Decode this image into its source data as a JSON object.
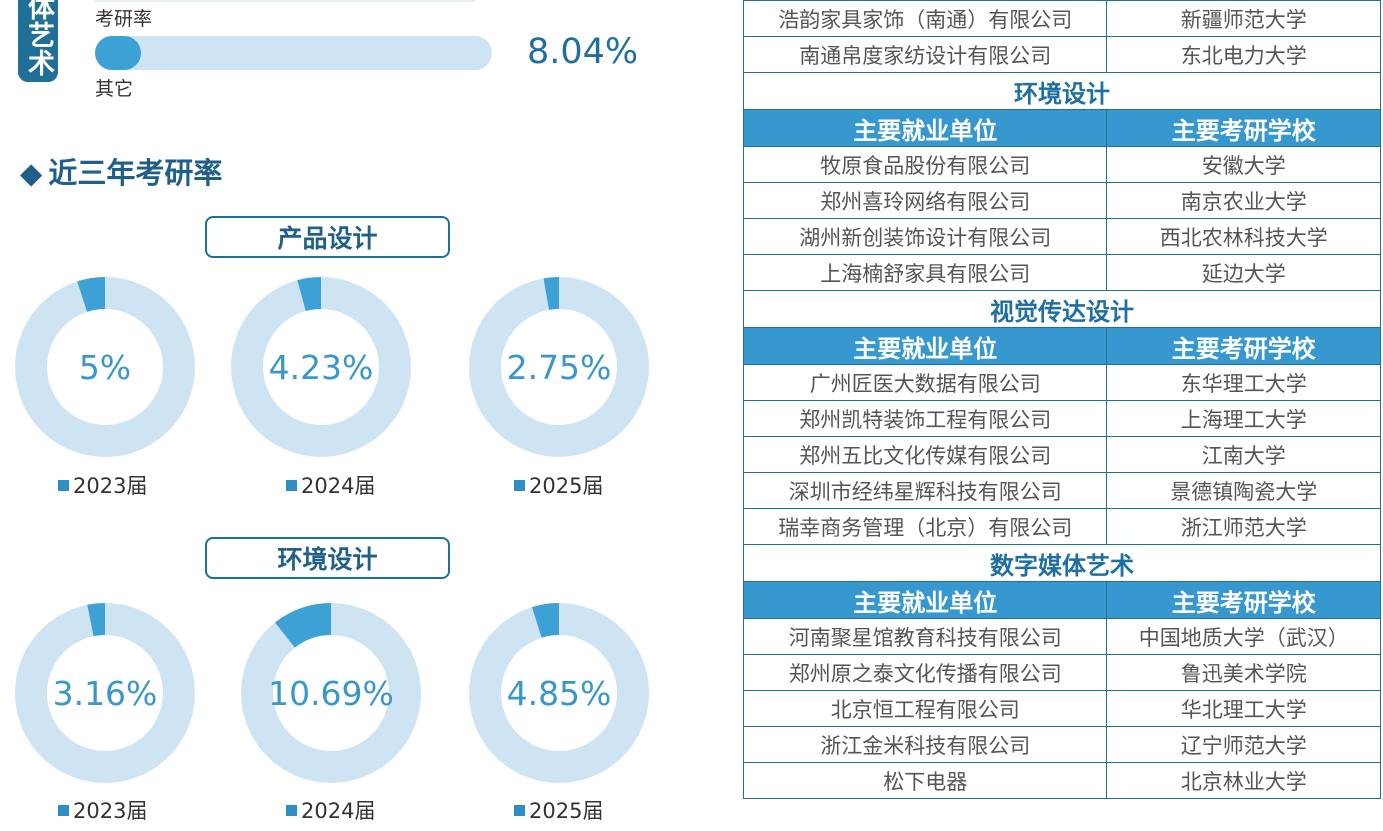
{
  "left": {
    "side_tag": "体艺术",
    "label_kaoyan": "考研率",
    "label_other": "其它",
    "bar_value": "8.04%",
    "bar_fraction": 0.0804,
    "section_title": "近三年考研率",
    "section_marker": "◆",
    "groups": [
      {
        "title": "产品设计",
        "items": [
          {
            "value": "5%",
            "fraction": 0.05,
            "year": "2023届"
          },
          {
            "value": "4.23%",
            "fraction": 0.0423,
            "year": "2024届"
          },
          {
            "value": "2.75%",
            "fraction": 0.0275,
            "year": "2025届"
          }
        ]
      },
      {
        "title": "环境设计",
        "items": [
          {
            "value": "3.16%",
            "fraction": 0.0316,
            "year": "2023届"
          },
          {
            "value": "10.69%",
            "fraction": 0.1069,
            "year": "2024届"
          },
          {
            "value": "4.85%",
            "fraction": 0.0485,
            "year": "2025届"
          }
        ]
      }
    ]
  },
  "colors": {
    "accent_dark": "#1f6f97",
    "accent": "#3da1d6",
    "ring_light": "#cfe4f3",
    "header_bg": "#3798cf"
  },
  "table": {
    "rows": [
      {
        "type": "row",
        "c1": "浩韵家具家饰（南通）有限公司",
        "c2": "新疆师范大学"
      },
      {
        "type": "row",
        "c1": "南通帛度家纺设计有限公司",
        "c2": "东北电力大学"
      },
      {
        "type": "sec",
        "text": "环境设计"
      },
      {
        "type": "hdr",
        "c1": "主要就业单位",
        "c2": "主要考研学校"
      },
      {
        "type": "row",
        "c1": "牧原食品股份有限公司",
        "c2": "安徽大学"
      },
      {
        "type": "row",
        "c1": "郑州喜玲网络有限公司",
        "c2": "南京农业大学"
      },
      {
        "type": "row",
        "c1": "湖州新创装饰设计有限公司",
        "c2": "西北农林科技大学"
      },
      {
        "type": "row",
        "c1": "上海楠舒家具有限公司",
        "c2": "延边大学"
      },
      {
        "type": "sec",
        "text": "视觉传达设计"
      },
      {
        "type": "hdr",
        "c1": "主要就业单位",
        "c2": "主要考研学校"
      },
      {
        "type": "row",
        "c1": "广州匠医大数据有限公司",
        "c2": "东华理工大学"
      },
      {
        "type": "row",
        "c1": "郑州凯特装饰工程有限公司",
        "c2": "上海理工大学"
      },
      {
        "type": "row",
        "c1": "郑州五比文化传媒有限公司",
        "c2": "江南大学"
      },
      {
        "type": "row",
        "c1": "深圳市经纬星辉科技有限公司",
        "c2": "景德镇陶瓷大学"
      },
      {
        "type": "row",
        "c1": "瑞幸商务管理（北京）有限公司",
        "c2": "浙江师范大学"
      },
      {
        "type": "sec",
        "text": "数字媒体艺术"
      },
      {
        "type": "hdr",
        "c1": "主要就业单位",
        "c2": "主要考研学校"
      },
      {
        "type": "row",
        "c1": "河南聚星馆教育科技有限公司",
        "c2": "中国地质大学（武汉）"
      },
      {
        "type": "row",
        "c1": "郑州原之泰文化传播有限公司",
        "c2": "鲁迅美术学院"
      },
      {
        "type": "row",
        "c1": "北京恒工程有限公司",
        "c2": "华北理工大学"
      },
      {
        "type": "row",
        "c1": "浙江金米科技有限公司",
        "c2": "辽宁师范大学"
      },
      {
        "type": "row",
        "c1": "松下电器",
        "c2": "北京林业大学"
      }
    ]
  }
}
